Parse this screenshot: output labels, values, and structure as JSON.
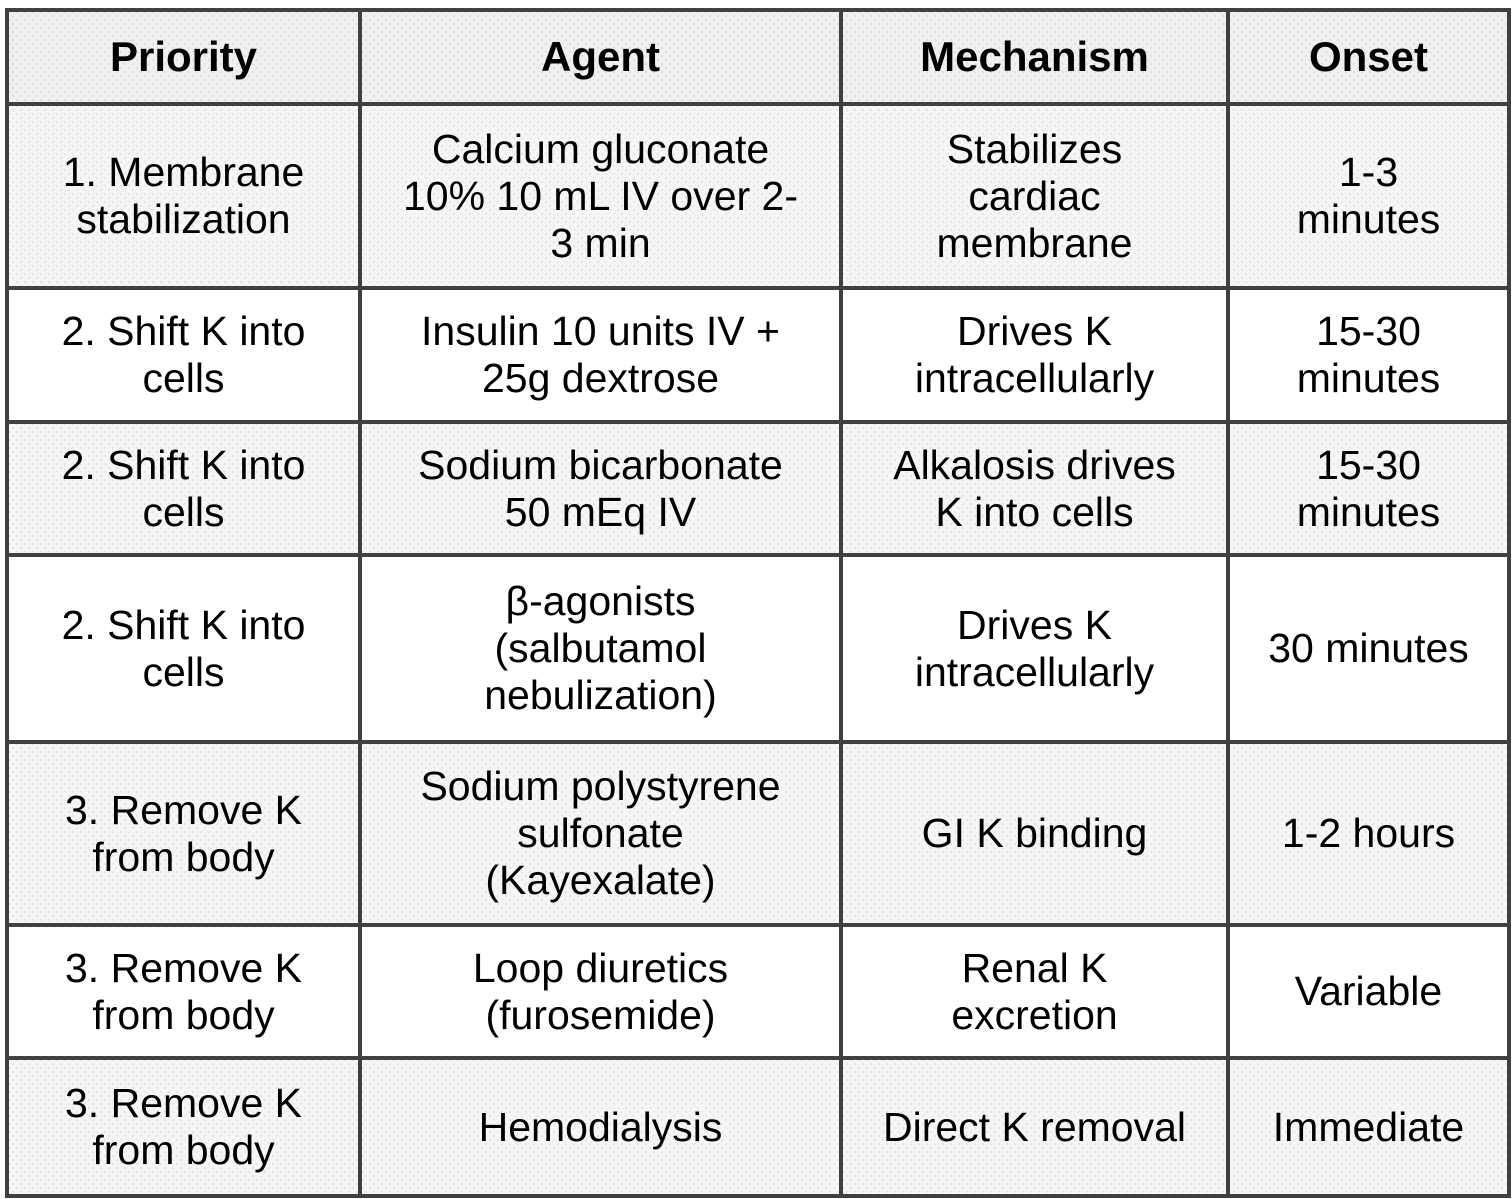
{
  "chart_data": {
    "type": "table",
    "columns": [
      "Priority",
      "Agent",
      "Mechanism",
      "Onset"
    ],
    "rows": [
      [
        "1. Membrane stabilization",
        "Calcium gluconate 10% 10 mL IV over 2-3 min",
        "Stabilizes cardiac membrane",
        "1-3 minutes"
      ],
      [
        "2. Shift K into cells",
        "Insulin 10 units IV + 25g dextrose",
        "Drives K intracellularly",
        "15-30 minutes"
      ],
      [
        "2. Shift K into cells",
        "Sodium bicarbonate 50 mEq IV",
        "Alkalosis drives K into cells",
        "15-30 minutes"
      ],
      [
        "2. Shift K into cells",
        "β-agonists (salbutamol nebulization)",
        "Drives K intracellularly",
        "30 minutes"
      ],
      [
        "3. Remove K from body",
        "Sodium polystyrene sulfonate (Kayexalate)",
        "GI K binding",
        "1-2 hours"
      ],
      [
        "3. Remove K from body",
        "Loop diuretics (furosemide)",
        "Renal K excretion",
        "Variable"
      ],
      [
        "3. Remove K from body",
        "Hemodialysis",
        "Direct K removal",
        "Immediate"
      ]
    ]
  },
  "header": {
    "priority": "Priority",
    "agent": "Agent",
    "mechanism": "Mechanism",
    "onset": "Onset"
  },
  "rows": [
    {
      "priority": "1. Membrane\nstabilization",
      "agent": "Calcium gluconate\n10% 10 mL IV over 2-\n3 min",
      "mechanism": "Stabilizes\ncardiac\nmembrane",
      "onset": "1-3\nminutes"
    },
    {
      "priority": "2. Shift K into\ncells",
      "agent": "Insulin 10 units IV +\n25g dextrose",
      "mechanism": "Drives K\nintracellularly",
      "onset": "15-30\nminutes"
    },
    {
      "priority": "2. Shift K into\ncells",
      "agent": "Sodium bicarbonate\n50 mEq IV",
      "mechanism": "Alkalosis drives\nK into cells",
      "onset": "15-30\nminutes"
    },
    {
      "priority": "2. Shift K into\ncells",
      "agent": "β-agonists\n(salbutamol\nnebulization)",
      "mechanism": "Drives K\nintracellularly",
      "onset": "30 minutes"
    },
    {
      "priority": "3. Remove K\nfrom body",
      "agent": "Sodium polystyrene\nsulfonate\n(Kayexalate)",
      "mechanism": "GI K binding",
      "onset": "1-2 hours"
    },
    {
      "priority": "3. Remove K\nfrom body",
      "agent": "Loop diuretics\n(furosemide)",
      "mechanism": "Renal K\nexcretion",
      "onset": "Variable"
    },
    {
      "priority": "3. Remove K\nfrom body",
      "agent": "Hemodialysis",
      "mechanism": "Direct K removal",
      "onset": "Immediate"
    }
  ],
  "colors": {
    "border": "#404040",
    "header_bg": "#f0f0f0",
    "row_alt_bg": "#f6f6f7",
    "row_bg": "#ffffff",
    "text": "#000000"
  }
}
